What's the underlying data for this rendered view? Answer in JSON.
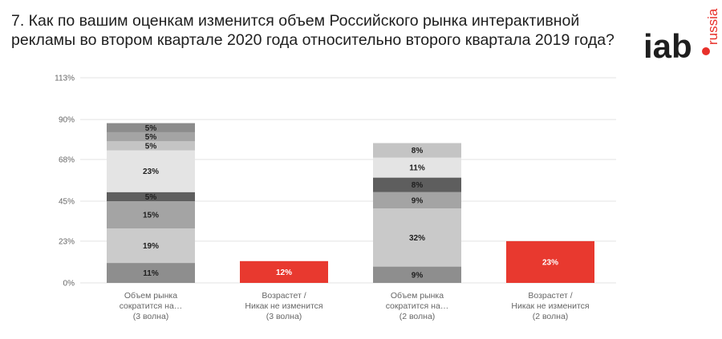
{
  "header": {
    "title": "7. Как по вашим оценкам изменится объем Российского рынка интерактивной рекламы во втором квартале 2020 года относительно второго квартала 2019 года?"
  },
  "logo": {
    "main": "iab",
    "sub": "russia",
    "accent": "#e8302a"
  },
  "chart_data": {
    "type": "bar",
    "stacked": true,
    "title": "7. Как по вашим оценкам изменится объем Российского рынка интерактивной рекламы во втором квартале 2020 года относительно второго квартала 2019 года?",
    "ylim": [
      0,
      113
    ],
    "yticks": [
      0,
      23,
      45,
      68,
      90,
      113
    ],
    "ytick_labels": [
      "0%",
      "23%",
      "45%",
      "68%",
      "90%",
      "113%"
    ],
    "grid": true,
    "categories": [
      [
        "Объем рынка",
        "сократится на…",
        "(3 волна)"
      ],
      [
        "Возрастет /",
        "Никак не изменится",
        "(3 волна)"
      ],
      [
        "Объем рынка",
        "сократится на…",
        "(2 волна)"
      ],
      [
        "Возрастет /",
        "Никак не изменится",
        "(2 волна)"
      ]
    ],
    "bars": [
      {
        "segments": [
          {
            "value": 11,
            "label": "11%",
            "color": "#8e8e8e"
          },
          {
            "value": 19,
            "label": "19%",
            "color": "#cbcbcb"
          },
          {
            "value": 15,
            "label": "15%",
            "color": "#a4a4a4"
          },
          {
            "value": 5,
            "label": "5%",
            "color": "#5e5e5e"
          },
          {
            "value": 23,
            "label": "23%",
            "color": "#e4e4e4"
          },
          {
            "value": 5,
            "label": "5%",
            "color": "#c4c4c4"
          },
          {
            "value": 5,
            "label": "5%",
            "color": "#a4a4a4"
          },
          {
            "value": 5,
            "label": "5%",
            "color": "#8c8c8c"
          }
        ]
      },
      {
        "segments": [
          {
            "value": 12,
            "label": "12%",
            "color": "#e8392f",
            "light": true
          }
        ]
      },
      {
        "segments": [
          {
            "value": 9,
            "label": "9%",
            "color": "#8e8e8e"
          },
          {
            "value": 32,
            "label": "32%",
            "color": "#c9c9c9"
          },
          {
            "value": 9,
            "label": "9%",
            "color": "#a4a4a4"
          },
          {
            "value": 8,
            "label": "8%",
            "color": "#5e5e5e"
          },
          {
            "value": 11,
            "label": "11%",
            "color": "#e4e4e4"
          },
          {
            "value": 8,
            "label": "8%",
            "color": "#c4c4c4"
          }
        ]
      },
      {
        "segments": [
          {
            "value": 23,
            "label": "23%",
            "color": "#e8392f",
            "light": true
          }
        ]
      }
    ]
  }
}
